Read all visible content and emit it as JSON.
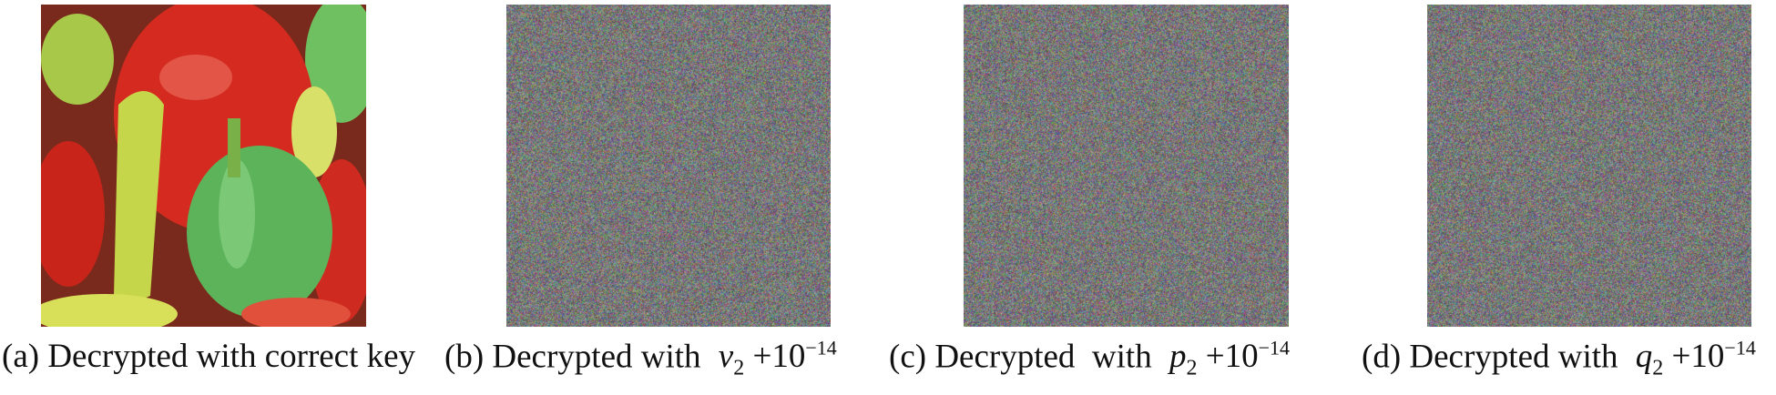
{
  "figure": {
    "panels": [
      {
        "label": "(a)",
        "caption": "Decrypted with correct key",
        "image": "peppers-decrypted-correct",
        "math_var": "",
        "math_sub": "",
        "math_plus": "",
        "exponent": ""
      },
      {
        "label": "(b)",
        "caption": "Decrypted with",
        "image": "noise",
        "math_var": "v",
        "math_sub": "2",
        "math_plus": "+10",
        "exponent": "−14"
      },
      {
        "label": "(c)",
        "caption": "Decrypted  with",
        "image": "noise",
        "math_var": "p",
        "math_sub": "2",
        "math_plus": "+10",
        "exponent": "−14"
      },
      {
        "label": "(d)",
        "caption": "Decrypted with",
        "image": "noise",
        "math_var": "q",
        "math_sub": "2",
        "math_plus": "+10",
        "exponent": "−14"
      }
    ]
  }
}
